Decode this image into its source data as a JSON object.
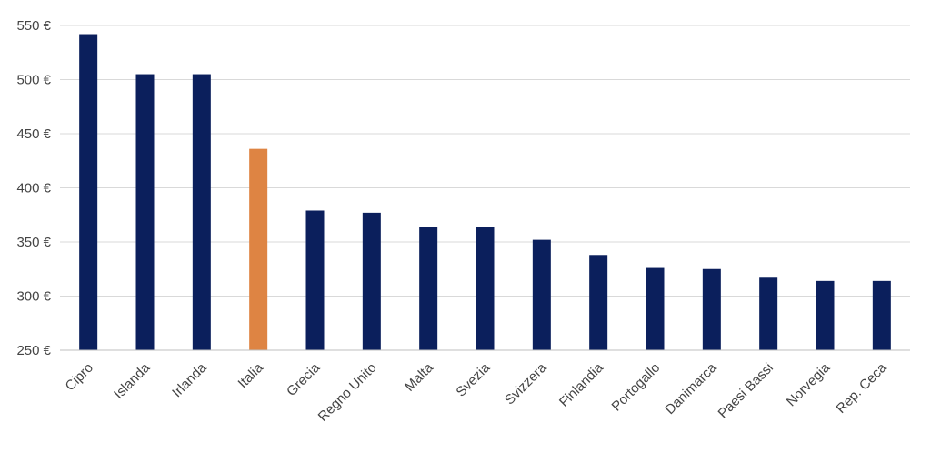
{
  "chart_data": {
    "type": "bar",
    "title": "",
    "xlabel": "",
    "ylabel": "",
    "categories": [
      "Cipro",
      "Islanda",
      "Irlanda",
      "Italia",
      "Grecia",
      "Regno Unito",
      "Malta",
      "Svezia",
      "Svizzera",
      "Finlandia",
      "Portogallo",
      "Danimarca",
      "Paesi Bassi",
      "Norvegia",
      "Rep. Ceca"
    ],
    "values": [
      542,
      505,
      505,
      436,
      379,
      377,
      364,
      364,
      352,
      338,
      326,
      325,
      317,
      314,
      314
    ],
    "ylim": [
      250,
      550
    ],
    "yticks": [
      250,
      300,
      350,
      400,
      450,
      500,
      550
    ],
    "ytick_labels": [
      "250 €",
      "300 €",
      "350 €",
      "400 €",
      "450 €",
      "500 €",
      "550 €"
    ],
    "grid": true,
    "legend": "none",
    "colors": {
      "default": "#0b1f5c",
      "highlight": "#de8443",
      "highlight_category": "Italia"
    }
  }
}
